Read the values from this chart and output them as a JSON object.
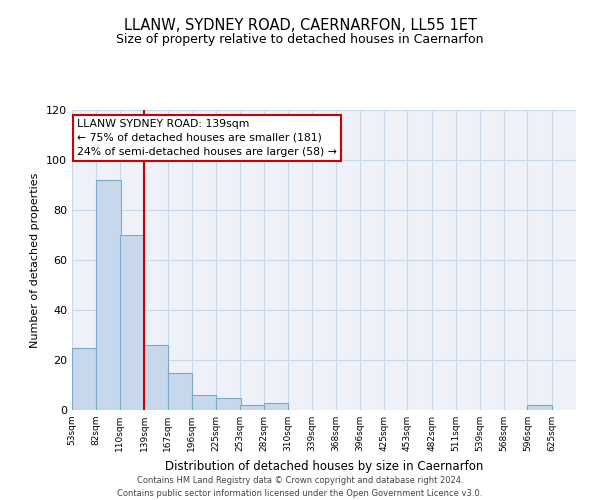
{
  "title1": "LLANW, SYDNEY ROAD, CAERNARFON, LL55 1ET",
  "title2": "Size of property relative to detached houses in Caernarfon",
  "xlabel": "Distribution of detached houses by size in Caernarfon",
  "ylabel": "Number of detached properties",
  "bin_labels": [
    "53sqm",
    "82sqm",
    "110sqm",
    "139sqm",
    "167sqm",
    "196sqm",
    "225sqm",
    "253sqm",
    "282sqm",
    "310sqm",
    "339sqm",
    "368sqm",
    "396sqm",
    "425sqm",
    "453sqm",
    "482sqm",
    "511sqm",
    "539sqm",
    "568sqm",
    "596sqm",
    "625sqm"
  ],
  "bin_edges": [
    53,
    82,
    110,
    139,
    167,
    196,
    225,
    253,
    282,
    310,
    339,
    368,
    396,
    425,
    453,
    482,
    511,
    539,
    568,
    596,
    625
  ],
  "bar_heights": [
    25,
    92,
    70,
    26,
    15,
    6,
    5,
    2,
    3,
    0,
    0,
    0,
    0,
    0,
    0,
    0,
    0,
    0,
    0,
    2,
    0
  ],
  "bar_color": "#c8d8ec",
  "bar_edge_color": "#7aaac8",
  "property_value_label": "139sqm",
  "property_bin_index": 3,
  "red_line_color": "#cc0000",
  "annotation_line1": "LLANW SYDNEY ROAD: 139sqm",
  "annotation_line2": "← 75% of detached houses are smaller (181)",
  "annotation_line3": "24% of semi-detached houses are larger (58) →",
  "annotation_box_facecolor": "#ffffff",
  "annotation_box_edgecolor": "#cc0000",
  "ylim": [
    0,
    120
  ],
  "yticks": [
    0,
    20,
    40,
    60,
    80,
    100,
    120
  ],
  "footer1": "Contains HM Land Registry data © Crown copyright and database right 2024.",
  "footer2": "Contains public sector information licensed under the Open Government Licence v3.0.",
  "grid_color": "#c8d8ec",
  "background_color": "#eef2f8"
}
